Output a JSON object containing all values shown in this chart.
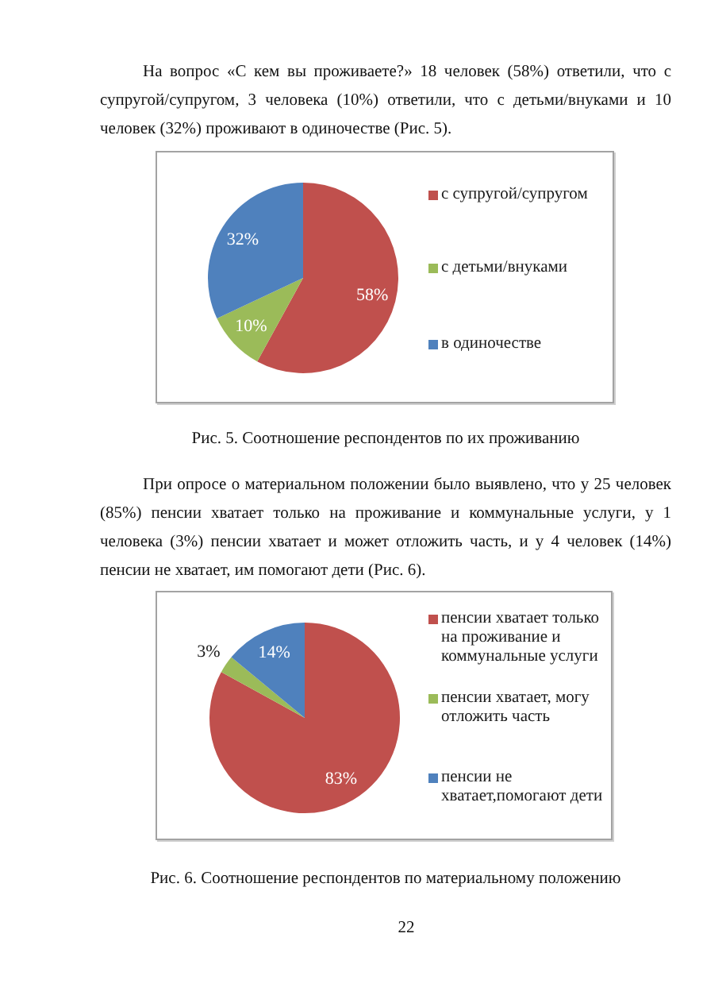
{
  "chart_data": [
    {
      "type": "pie",
      "annotations": [
        "На вопрос «С кем вы проживаете?» 18 человек (58%) ответили, что с супругой/супругом, 3 человека (10%) ответили, что с детьми/внуками и 10 человек (32%) проживают в одиночестве (Рис. 5)."
      ],
      "title": "Рис. 5. Соотношение респондентов по их проживанию",
      "categories": [
        "с супругой/супругом",
        "с детьми/внуками",
        "в одиночестве"
      ],
      "values": [
        58,
        10,
        32
      ],
      "colors": [
        "#c0504d",
        "#9bbb59",
        "#4f81bd"
      ],
      "value_labels": [
        "58%",
        "10%",
        "32%"
      ],
      "legend": "right"
    },
    {
      "type": "pie",
      "annotations": [
        "При опросе о материальном положении было выявлено, что у 25 человек (85%) пенсии хватает только на проживание и коммунальные услуги, у 1 человека (3%) пенсии хватает и может отложить часть, и у 4 человек (14%) пенсии не хватает, им помогают дети (Рис. 6).",
        "22"
      ],
      "title": "Рис. 6. Соотношение респондентов по материальному положению",
      "categories": [
        "пенсии хватает только на проживание и коммунальные услуги",
        "пенсии хватает, могу отложить часть",
        "пенсии не хватает,помогают дети"
      ],
      "values": [
        83,
        3,
        14
      ],
      "colors": [
        "#c0504d",
        "#9bbb59",
        "#4f81bd"
      ],
      "value_labels": [
        "83%",
        "3%",
        "14%"
      ],
      "legend": "right"
    }
  ]
}
